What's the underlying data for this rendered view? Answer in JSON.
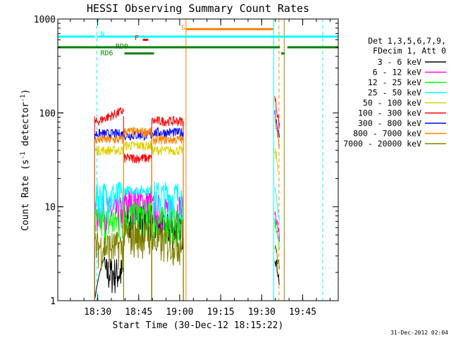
{
  "chart_data": {
    "type": "line",
    "title": "HESSI Observing Summary Count Rates",
    "xlabel": "Start Time (30-Dec-12 18:15:22)",
    "ylabel": "Count Rate (s⁻¹ detector⁻¹)",
    "yscale": "log",
    "ylim": [
      1,
      1000
    ],
    "xlim_minutes": [
      15.4,
      118
    ],
    "x_ticks": [
      {
        "label": "18:30",
        "min": 30
      },
      {
        "label": "18:45",
        "min": 45
      },
      {
        "label": "19:00",
        "min": 60
      },
      {
        "label": "19:15",
        "min": 75
      },
      {
        "label": "19:30",
        "min": 90
      },
      {
        "label": "19:45",
        "min": 105
      }
    ],
    "y_ticks": [
      {
        "label": "1",
        "v": 1
      },
      {
        "label": "10",
        "v": 10
      },
      {
        "label": "100",
        "v": 100
      },
      {
        "label": "1000",
        "v": 1000
      }
    ],
    "legend_header": [
      "Det 1,3,5,6,7,9,",
      "FDecim 1, Att 0"
    ],
    "segments": [
      [
        28.9,
        39.5
      ],
      [
        39.5,
        49.8
      ],
      [
        49.8,
        61.3
      ]
    ],
    "series": [
      {
        "name": "3 - 6 keV",
        "color": "#000000",
        "values": [
          2.0,
          7.5,
          6.0
        ]
      },
      {
        "name": "6 - 12 keV",
        "color": "#ff00ff",
        "values": [
          9.0,
          11.0,
          9.5
        ]
      },
      {
        "name": "12 - 25 keV",
        "color": "#00ff00",
        "values": [
          7.0,
          8.0,
          7.0
        ]
      },
      {
        "name": "25 - 50 keV",
        "color": "#00ffff",
        "values": [
          13.0,
          15.0,
          13.0
        ]
      },
      {
        "name": "50 - 100 keV",
        "color": "#e0d000",
        "values": [
          40.0,
          45.0,
          40.0
        ]
      },
      {
        "name": "100 - 300 keV",
        "color": "#ff0000",
        "values": [
          92.0,
          33.0,
          82.0
        ]
      },
      {
        "name": "300 - 800 keV",
        "color": "#0000ff",
        "values": [
          60.0,
          58.0,
          62.0
        ]
      },
      {
        "name": "800 - 7000 keV",
        "color": "#ff8000",
        "values": [
          52.0,
          63.0,
          52.0
        ]
      },
      {
        "name": "7000 - 20000 keV",
        "color": "#808000",
        "values": [
          3.8,
          5.0,
          4.2
        ]
      }
    ],
    "spike_segment": [
      94.8,
      96.5
    ],
    "spike_values": {
      "3 - 6 keV": 3.0,
      "6 - 12 keV": 9.0,
      "12 - 25 keV": 7.0,
      "25 - 50 keV": 14.0,
      "50 - 100 keV": 40.0,
      "100 - 300 keV": 140.0,
      "300 - 800 keV": 100.0,
      "800 - 7000 keV": 90.0,
      "7000 - 20000 keV": 4.0
    },
    "flag_bars": [
      {
        "label": "N",
        "color": "#00ffff",
        "v": 650,
        "ranges": [
          [
            15.4,
            28.9
          ],
          [
            29.8,
            118
          ]
        ],
        "gaps_in_axis": true
      },
      {
        "label": "S",
        "color": "#ff8000",
        "v": 780,
        "ranges": [
          [
            62.3,
            94.2
          ]
        ]
      },
      {
        "label": "F",
        "color": "#ff0000",
        "v": 600,
        "ranges": [
          [
            46.5,
            48.5
          ]
        ]
      },
      {
        "label": "RD0",
        "color": "#008000",
        "v": 500,
        "ranges": [
          [
            15.4,
            96.7
          ],
          [
            99.4,
            118
          ]
        ]
      },
      {
        "label": "RD6",
        "color": "#008000",
        "v": 430,
        "ranges": [
          [
            39.8,
            50.6
          ],
          [
            97.1,
            98.4
          ]
        ]
      }
    ],
    "vlines": [
      {
        "color": "#00ffff",
        "style": "dash",
        "min": 29.7
      },
      {
        "color": "#00ffff",
        "style": "solid",
        "min": 94.4
      },
      {
        "color": "#00ffff",
        "style": "solid",
        "min": 98.3
      },
      {
        "color": "#00ffff",
        "style": "dash",
        "min": 112.3
      },
      {
        "color": "#ff8000",
        "style": "solid",
        "min": 62.3
      },
      {
        "color": "#ff8000",
        "style": "solid",
        "min": 98.2
      },
      {
        "color": "#ff8000",
        "style": "dash",
        "min": 96.3
      }
    ]
  },
  "footer_timestamp": "31-Dec-2012 02:04"
}
